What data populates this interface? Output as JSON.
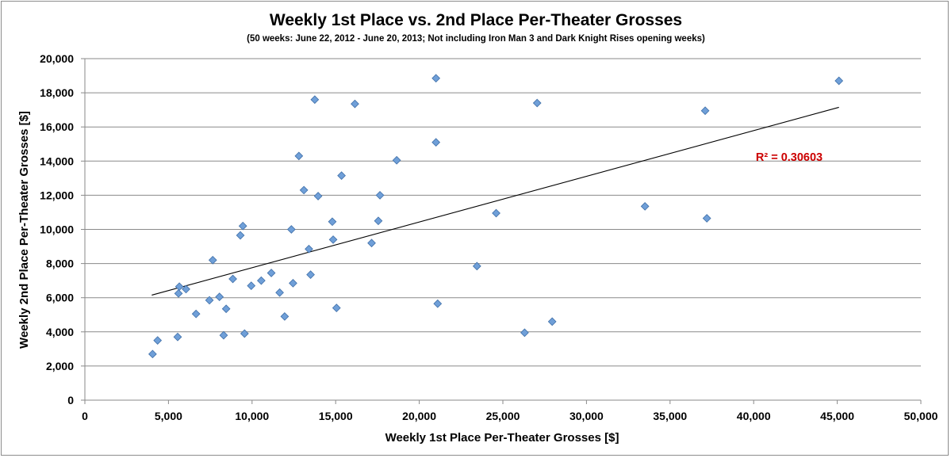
{
  "chart_data": {
    "type": "scatter",
    "title": "Weekly 1st Place vs. 2nd Place Per-Theater Grosses",
    "subtitle": "(50 weeks: June 22, 2012 - June 20, 2013; Not including Iron Man 3 and Dark Knight Rises opening weeks)",
    "xlabel": "Weekly 1st Place Per-Theater Grosses [$]",
    "ylabel": "Weekly 2nd Place Per-Theater Grosses [$]",
    "xlim": [
      0,
      50000
    ],
    "ylim": [
      0,
      20000
    ],
    "xticks": [
      0,
      5000,
      10000,
      15000,
      20000,
      25000,
      30000,
      35000,
      40000,
      45000,
      50000
    ],
    "yticks": [
      0,
      2000,
      4000,
      6000,
      8000,
      10000,
      12000,
      14000,
      16000,
      18000,
      20000
    ],
    "xtick_labels": [
      "0",
      "5,000",
      "10,000",
      "15,000",
      "20,000",
      "25,000",
      "30,000",
      "35,000",
      "40,000",
      "45,000",
      "50,000"
    ],
    "ytick_labels": [
      "0",
      "2,000",
      "4,000",
      "6,000",
      "8,000",
      "10,000",
      "12,000",
      "14,000",
      "16,000",
      "18,000",
      "20,000"
    ],
    "grid": true,
    "marker": "diamond",
    "marker_color": "#6f9fd8",
    "points": [
      {
        "x": 4050,
        "y": 2700
      },
      {
        "x": 4350,
        "y": 3500
      },
      {
        "x": 5550,
        "y": 3700
      },
      {
        "x": 5600,
        "y": 6250
      },
      {
        "x": 5650,
        "y": 6650
      },
      {
        "x": 6050,
        "y": 6500
      },
      {
        "x": 6650,
        "y": 5050
      },
      {
        "x": 7450,
        "y": 5850
      },
      {
        "x": 7650,
        "y": 8200
      },
      {
        "x": 8050,
        "y": 6050
      },
      {
        "x": 8300,
        "y": 3800
      },
      {
        "x": 8450,
        "y": 5350
      },
      {
        "x": 8850,
        "y": 7100
      },
      {
        "x": 9300,
        "y": 9650
      },
      {
        "x": 9450,
        "y": 10200
      },
      {
        "x": 9550,
        "y": 3900
      },
      {
        "x": 9950,
        "y": 6700
      },
      {
        "x": 10550,
        "y": 7000
      },
      {
        "x": 11150,
        "y": 7450
      },
      {
        "x": 11650,
        "y": 6300
      },
      {
        "x": 11950,
        "y": 4900
      },
      {
        "x": 12350,
        "y": 10000
      },
      {
        "x": 12450,
        "y": 6850
      },
      {
        "x": 12800,
        "y": 14300
      },
      {
        "x": 13100,
        "y": 12300
      },
      {
        "x": 13400,
        "y": 8850
      },
      {
        "x": 13500,
        "y": 7350
      },
      {
        "x": 13750,
        "y": 17600
      },
      {
        "x": 13950,
        "y": 11950
      },
      {
        "x": 14800,
        "y": 10450
      },
      {
        "x": 14850,
        "y": 9400
      },
      {
        "x": 15050,
        "y": 5400
      },
      {
        "x": 15350,
        "y": 13150
      },
      {
        "x": 16150,
        "y": 17350
      },
      {
        "x": 17150,
        "y": 9200
      },
      {
        "x": 17550,
        "y": 10500
      },
      {
        "x": 17650,
        "y": 12000
      },
      {
        "x": 18650,
        "y": 14050
      },
      {
        "x": 21000,
        "y": 18850
      },
      {
        "x": 21000,
        "y": 15100
      },
      {
        "x": 21100,
        "y": 5650
      },
      {
        "x": 23450,
        "y": 7850
      },
      {
        "x": 24600,
        "y": 10950
      },
      {
        "x": 26300,
        "y": 3950
      },
      {
        "x": 27050,
        "y": 17400
      },
      {
        "x": 27950,
        "y": 4600
      },
      {
        "x": 33500,
        "y": 11350
      },
      {
        "x": 37100,
        "y": 16950
      },
      {
        "x": 37200,
        "y": 10650
      },
      {
        "x": 45100,
        "y": 18700
      }
    ],
    "trendline": {
      "type": "linear",
      "x": [
        4000,
        45100
      ],
      "y": [
        6150,
        17150
      ]
    },
    "annotation": "R² = 0.30603",
    "annotation_color": "#cc0000"
  }
}
